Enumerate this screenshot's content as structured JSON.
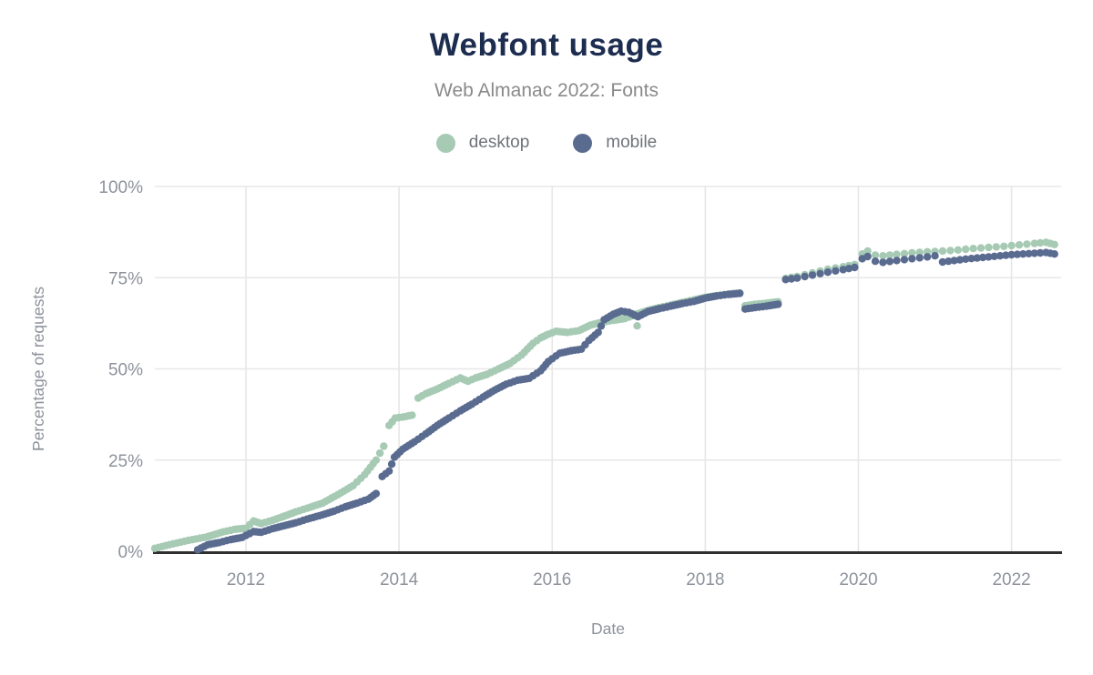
{
  "header": {
    "title": "Webfont usage",
    "subtitle": "Web Almanac 2022: Fonts"
  },
  "legend": {
    "items": [
      {
        "label": "desktop",
        "color": "#a6cab4"
      },
      {
        "label": "mobile",
        "color": "#5a6b90"
      }
    ]
  },
  "chart_data": {
    "type": "scatter",
    "title": "Webfont usage",
    "subtitle": "Web Almanac 2022: Fonts",
    "xlabel": "Date",
    "ylabel": "Percentage of requests",
    "x_unit": "decimal_year",
    "y_unit": "percent_of_requests",
    "xlim": [
      2010.7,
      2022.65
    ],
    "ylim": [
      0,
      100
    ],
    "grid": true,
    "legend_position": "top-center",
    "x_ticks": [
      {
        "value": 2012,
        "label": "2012"
      },
      {
        "value": 2014,
        "label": "2014"
      },
      {
        "value": 2016,
        "label": "2016"
      },
      {
        "value": 2018,
        "label": "2018"
      },
      {
        "value": 2020,
        "label": "2020"
      },
      {
        "value": 2022,
        "label": "2022"
      }
    ],
    "y_ticks": [
      {
        "value": 0,
        "label": "0%"
      },
      {
        "value": 25,
        "label": "25%"
      },
      {
        "value": 50,
        "label": "50%"
      },
      {
        "value": 75,
        "label": "75%"
      },
      {
        "value": 100,
        "label": "100%"
      }
    ],
    "series": [
      {
        "name": "desktop",
        "color": "#a6cab4",
        "segments": [
          [
            [
              2010.81,
              0.8
            ],
            [
              2011.0,
              1.8
            ],
            [
              2011.25,
              3.0
            ],
            [
              2011.5,
              4.0
            ],
            [
              2011.7,
              5.3
            ],
            [
              2011.85,
              6.0
            ],
            [
              2012.0,
              6.3
            ],
            [
              2012.1,
              8.3
            ],
            [
              2012.2,
              7.6
            ],
            [
              2012.35,
              8.5
            ],
            [
              2012.5,
              9.6
            ],
            [
              2012.65,
              10.8
            ],
            [
              2012.8,
              11.8
            ],
            [
              2013.0,
              13.2
            ],
            [
              2013.2,
              15.5
            ],
            [
              2013.4,
              18.0
            ],
            [
              2013.55,
              21.0
            ],
            [
              2013.7,
              25.0
            ],
            [
              2013.8,
              28.8
            ]
          ],
          [
            [
              2013.87,
              34.5
            ],
            [
              2013.95,
              36.5
            ],
            [
              2014.05,
              36.8
            ],
            [
              2014.17,
              37.3
            ]
          ],
          [
            [
              2014.25,
              42.0
            ],
            [
              2014.35,
              43.2
            ],
            [
              2014.5,
              44.5
            ],
            [
              2014.65,
              46.0
            ],
            [
              2014.8,
              47.5
            ],
            [
              2014.9,
              46.6
            ],
            [
              2015.0,
              47.5
            ],
            [
              2015.15,
              48.5
            ],
            [
              2015.3,
              50.0
            ],
            [
              2015.45,
              51.5
            ],
            [
              2015.6,
              53.8
            ],
            [
              2015.75,
              57.0
            ],
            [
              2015.85,
              58.5
            ],
            [
              2015.95,
              59.5
            ],
            [
              2016.05,
              60.3
            ],
            [
              2016.2,
              60.0
            ],
            [
              2016.35,
              60.5
            ],
            [
              2016.5,
              62.0
            ],
            [
              2016.65,
              62.8
            ],
            [
              2016.8,
              63.3
            ],
            [
              2016.95,
              63.8
            ],
            [
              2017.1,
              65.0
            ],
            [
              2017.25,
              66.0
            ],
            [
              2017.4,
              66.8
            ],
            [
              2017.55,
              67.5
            ],
            [
              2017.7,
              68.2
            ],
            [
              2017.85,
              68.9
            ],
            [
              2018.0,
              69.6
            ],
            [
              2018.15,
              70.1
            ],
            [
              2018.3,
              70.5
            ],
            [
              2018.45,
              70.8
            ]
          ],
          [
            [
              2018.52,
              67.3
            ],
            [
              2018.65,
              67.7
            ],
            [
              2018.8,
              68.0
            ],
            [
              2018.95,
              68.4
            ]
          ],
          [
            [
              2019.05,
              74.8
            ],
            [
              2019.2,
              75.3
            ],
            [
              2019.4,
              76.3
            ],
            [
              2019.6,
              77.3
            ],
            [
              2019.8,
              78.0
            ],
            [
              2019.95,
              78.6
            ]
          ],
          [
            [
              2020.05,
              81.5
            ],
            [
              2020.12,
              82.3
            ],
            [
              2020.22,
              81.2
            ],
            [
              2020.32,
              81.0
            ],
            [
              2020.5,
              81.4
            ],
            [
              2020.7,
              81.8
            ],
            [
              2020.9,
              82.1
            ],
            [
              2021.1,
              82.3
            ],
            [
              2021.3,
              82.6
            ],
            [
              2021.5,
              83.0
            ],
            [
              2021.7,
              83.3
            ],
            [
              2021.9,
              83.6
            ],
            [
              2022.1,
              84.0
            ],
            [
              2022.3,
              84.4
            ],
            [
              2022.45,
              84.7
            ],
            [
              2022.56,
              84.1
            ]
          ]
        ],
        "outliers": [
          [
            2017.11,
            61.8
          ]
        ]
      },
      {
        "name": "mobile",
        "color": "#5a6b90",
        "segments": [
          [
            [
              2011.37,
              0.4
            ],
            [
              2011.5,
              1.8
            ],
            [
              2011.65,
              2.4
            ],
            [
              2011.8,
              3.2
            ],
            [
              2011.95,
              3.8
            ],
            [
              2012.1,
              5.4
            ],
            [
              2012.2,
              5.2
            ],
            [
              2012.35,
              6.2
            ],
            [
              2012.5,
              7.0
            ],
            [
              2012.65,
              7.8
            ],
            [
              2012.8,
              8.8
            ],
            [
              2013.0,
              10.0
            ],
            [
              2013.15,
              11.0
            ],
            [
              2013.3,
              12.2
            ],
            [
              2013.45,
              13.2
            ],
            [
              2013.6,
              14.3
            ],
            [
              2013.7,
              15.8
            ]
          ],
          [
            [
              2013.78,
              20.5
            ],
            [
              2013.87,
              22.0
            ],
            [
              2013.94,
              25.8
            ],
            [
              2014.05,
              28.0
            ],
            [
              2014.2,
              30.0
            ],
            [
              2014.35,
              32.2
            ],
            [
              2014.5,
              34.5
            ],
            [
              2014.65,
              36.5
            ],
            [
              2014.8,
              38.5
            ],
            [
              2014.95,
              40.3
            ],
            [
              2015.1,
              42.3
            ],
            [
              2015.25,
              44.2
            ],
            [
              2015.4,
              45.8
            ],
            [
              2015.55,
              46.9
            ],
            [
              2015.7,
              47.4
            ],
            [
              2015.85,
              49.5
            ],
            [
              2015.95,
              52.0
            ],
            [
              2016.1,
              54.3
            ],
            [
              2016.25,
              55.0
            ],
            [
              2016.38,
              55.4
            ],
            [
              2016.48,
              57.8
            ],
            [
              2016.6,
              60.0
            ],
            [
              2016.68,
              63.5
            ],
            [
              2016.8,
              65.0
            ],
            [
              2016.9,
              65.8
            ],
            [
              2017.0,
              65.5
            ],
            [
              2017.12,
              64.3
            ],
            [
              2017.25,
              65.7
            ],
            [
              2017.4,
              66.5
            ],
            [
              2017.55,
              67.2
            ],
            [
              2017.7,
              67.9
            ],
            [
              2017.85,
              68.5
            ],
            [
              2018.0,
              69.4
            ],
            [
              2018.15,
              70.0
            ],
            [
              2018.3,
              70.4
            ],
            [
              2018.45,
              70.7
            ]
          ],
          [
            [
              2018.52,
              66.4
            ],
            [
              2018.65,
              66.8
            ],
            [
              2018.8,
              67.2
            ],
            [
              2018.95,
              67.7
            ]
          ],
          [
            [
              2019.05,
              74.5
            ],
            [
              2019.2,
              74.9
            ],
            [
              2019.4,
              75.7
            ],
            [
              2019.6,
              76.5
            ],
            [
              2019.8,
              77.2
            ],
            [
              2019.95,
              77.8
            ]
          ],
          [
            [
              2020.05,
              80.2
            ],
            [
              2020.12,
              80.8
            ],
            [
              2020.22,
              79.5
            ],
            [
              2020.32,
              79.2
            ],
            [
              2020.5,
              79.7
            ],
            [
              2020.7,
              80.2
            ],
            [
              2020.9,
              80.7
            ],
            [
              2021.0,
              81.0
            ]
          ],
          [
            [
              2021.1,
              79.3
            ],
            [
              2021.25,
              79.7
            ],
            [
              2021.4,
              80.1
            ],
            [
              2021.55,
              80.4
            ],
            [
              2021.7,
              80.7
            ],
            [
              2021.85,
              81.0
            ],
            [
              2022.0,
              81.3
            ],
            [
              2022.15,
              81.5
            ],
            [
              2022.3,
              81.7
            ],
            [
              2022.45,
              81.9
            ],
            [
              2022.56,
              81.5
            ]
          ]
        ],
        "outliers": []
      }
    ]
  },
  "colors": {
    "title": "#1d2d50",
    "subtitle": "#8a8a8a",
    "legend_text": "#6f7378",
    "tick_text": "#8d929b",
    "axis_title_text": "#8d929b",
    "gridline": "#e7e7e7",
    "axis_line": "#2f2f2f",
    "background": "#ffffff"
  }
}
